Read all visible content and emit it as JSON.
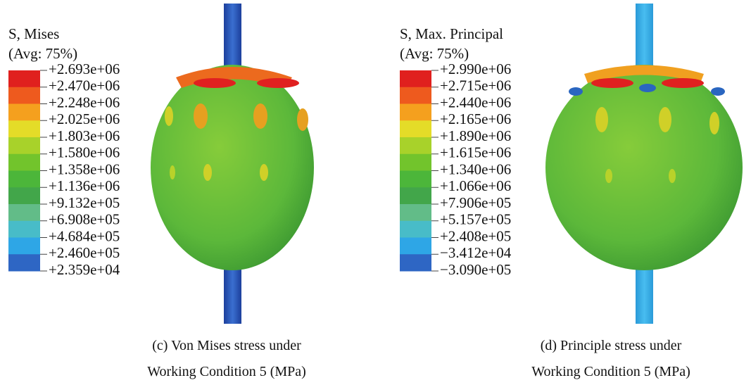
{
  "panels": [
    {
      "legend_title": [
        "S, Mises",
        "(Avg: 75%)"
      ],
      "legend_labels": [
        "+2.693e+06",
        "+2.470e+06",
        "+2.248e+06",
        "+2.025e+06",
        "+1.803e+06",
        "+1.580e+06",
        "+1.358e+06",
        "+1.136e+06",
        "+9.132e+05",
        "+6.908e+05",
        "+4.684e+05",
        "+2.460e+05",
        "+2.359e+04"
      ],
      "caption": [
        "(c) Von Mises stress under",
        "Working Condition 5 (MPa)"
      ]
    },
    {
      "legend_title": [
        "S, Max. Principal",
        "(Avg: 75%)"
      ],
      "legend_labels": [
        "+2.990e+06",
        "+2.715e+06",
        "+2.440e+06",
        "+2.165e+06",
        "+1.890e+06",
        "+1.615e+06",
        "+1.340e+06",
        "+1.066e+06",
        "+7.906e+05",
        "+5.157e+05",
        "+2.408e+05",
        "−3.412e+04",
        "−3.090e+05"
      ],
      "caption": [
        "(d) Principle stress under",
        "Working Condition 5 (MPa)"
      ]
    }
  ]
}
